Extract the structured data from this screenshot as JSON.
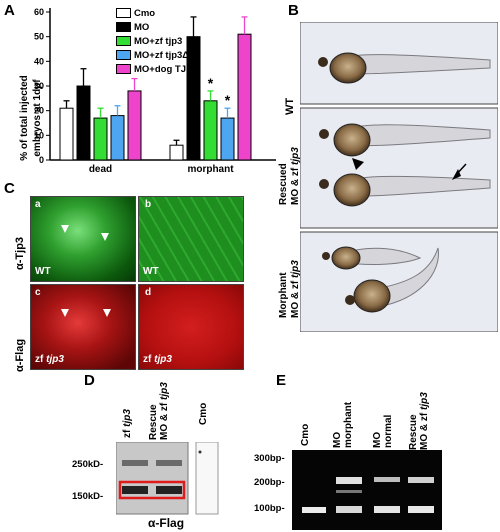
{
  "panels": {
    "A": "A",
    "B": "B",
    "C": "C",
    "D": "D",
    "E": "E"
  },
  "panel_a": {
    "ylabel_line1": "% of total injected",
    "ylabel_line2": "embryos at 1dpf",
    "legend": [
      {
        "label": "Cmo",
        "color": "#ffffff"
      },
      {
        "label": "MO",
        "color": "#000000"
      },
      {
        "label": "MO+zf tjp3",
        "color": "#33dd33"
      },
      {
        "label": "MO+zf tjp3ΔP",
        "color": "#4ea6f0"
      },
      {
        "label": "MO+dog TJP3",
        "color": "#ee44cc"
      }
    ],
    "star": "*"
  },
  "chart_data": {
    "type": "bar",
    "categories": [
      "dead",
      "morphant"
    ],
    "series": [
      {
        "name": "Cmo",
        "values": [
          21,
          6
        ],
        "errors": [
          3,
          2
        ]
      },
      {
        "name": "MO",
        "values": [
          30,
          50
        ],
        "errors": [
          7,
          8
        ]
      },
      {
        "name": "MO+zf tjp3",
        "values": [
          17,
          24
        ],
        "errors": [
          4,
          4
        ]
      },
      {
        "name": "MO+zf tjp3ΔP",
        "values": [
          18,
          17
        ],
        "errors": [
          4,
          4
        ]
      },
      {
        "name": "MO+dog TJP3",
        "values": [
          28,
          51
        ],
        "errors": [
          5,
          7
        ]
      }
    ],
    "significant": [
      [
        false,
        false,
        false,
        false,
        false
      ],
      [
        false,
        false,
        true,
        true,
        false
      ]
    ],
    "ylim": [
      0,
      60
    ],
    "yticks": [
      0,
      10,
      20,
      30,
      40,
      50,
      60
    ],
    "xlabel": "",
    "ylabel": "% of total injected embryos at 1dpf"
  },
  "panel_b": {
    "labels": [
      "WT",
      "Rescued",
      "MO & zf",
      "tjp3",
      "Morphant",
      "MO & zf",
      "tjp3"
    ]
  },
  "panel_c": {
    "row_labels": [
      "α-Tjp3",
      "α-Flag"
    ],
    "sub": [
      "a",
      "b",
      "c",
      "d"
    ],
    "wt": "WT",
    "zf": "zf",
    "tjp3": "tjp3"
  },
  "panel_d": {
    "lanes": [
      "zf",
      "tjp3",
      "Rescue",
      "MO & zf",
      "tjp3",
      "Cmo"
    ],
    "markers": [
      "250kD-",
      "150kD-"
    ],
    "xlabel": "α-Flag"
  },
  "panel_e": {
    "lanes": [
      "Cmo",
      "MO",
      "morphant",
      "MO",
      "normal",
      "Rescue",
      "MO & zf",
      "tjp3"
    ],
    "markers": [
      "300bp-",
      "200bp-",
      "100bp-"
    ]
  }
}
